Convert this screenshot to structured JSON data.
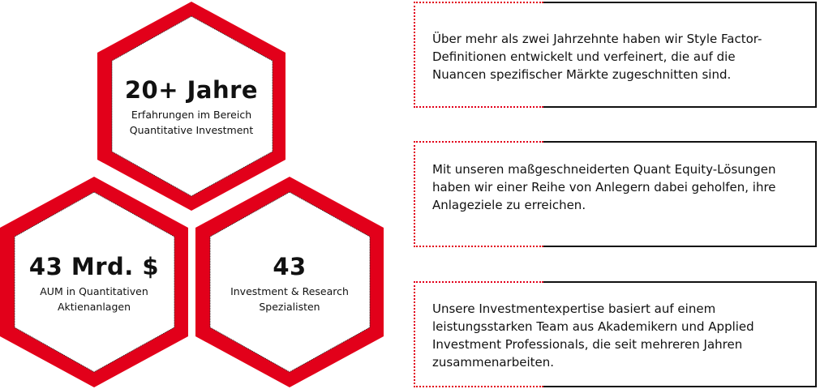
{
  "colors": {
    "accent": "#e2001a",
    "text": "#111111",
    "border": "#111111"
  },
  "stats": [
    {
      "value": "20+ Jahre",
      "label_lines": [
        "Erfahrungen im Bereich",
        "Quantitative Investment"
      ]
    },
    {
      "value": "43 Mrd. $",
      "label_lines": [
        "AUM in Quantitativen",
        "Aktienanlagen"
      ]
    },
    {
      "value": "43",
      "label_lines": [
        "Investment & Research",
        "Spezialisten"
      ]
    }
  ],
  "boxes": [
    {
      "text_lines": [
        "Über mehr als zwei Jahrzehnte haben wir Style Factor-",
        "Definitionen entwickelt und verfeinert, die auf die",
        "Nuancen spezifischer Märkte zugeschnitten sind."
      ]
    },
    {
      "text_lines": [
        "Mit unseren maßgeschneiderten Quant Equity-Lösungen",
        "haben wir einer Reihe von Anlegern dabei geholfen, ihre",
        "Anlageziele zu erreichen."
      ]
    },
    {
      "text_lines": [
        "Unsere Investmentexpertise basiert auf einem",
        "leistungsstarken Team aus Akademikern und Applied",
        "Investment Professionals, die seit mehreren Jahren",
        "zusammenarbeiten."
      ]
    }
  ]
}
